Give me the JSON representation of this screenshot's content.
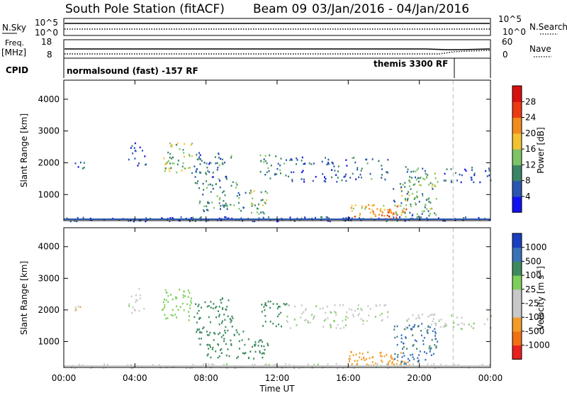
{
  "header": {
    "station": "South Pole Station (fitACF)",
    "beam": "Beam 09",
    "dates": "03/Jan/2016 - 04/Jan/2016"
  },
  "strips": {
    "nsky": {
      "label": "N.Sky",
      "tick_top": "10^5",
      "tick_bottom": "10^0"
    },
    "nsearch": {
      "label": "N.Search",
      "tick_top": "10^5",
      "tick_bottom": "10^0"
    },
    "freq": {
      "label": "Freq.",
      "unit": "[MHz]",
      "tick_top": "18",
      "tick_bottom": "8"
    },
    "nave": {
      "label": "Nave",
      "tick_top": "60",
      "tick_bottom": "0"
    }
  },
  "cpid": {
    "label": "CPID",
    "modes": [
      "normalsound (fast) -157 RF",
      "themis 3300 RF"
    ],
    "mode_change_hour": 21.9
  },
  "chart_data": [
    {
      "type": "heatmap",
      "name": "power",
      "xlabel": "Time UT",
      "ylabel": "Slant Range [km]",
      "x_range_hours": [
        0,
        24
      ],
      "ylim": [
        180,
        4600
      ],
      "yticks": [
        "1000",
        "2000",
        "3000",
        "4000"
      ],
      "ytick_values": [
        1000,
        2000,
        3000,
        4000
      ],
      "colorbar": {
        "label": "Power [dB]",
        "ticks": [
          "4",
          "8",
          "12",
          "16",
          "20",
          "24",
          "28"
        ],
        "colors": [
          "#1212f0",
          "#2a56b0",
          "#3b8566",
          "#7ec466",
          "#f2c233",
          "#f08c1e",
          "#ee3a12",
          "#d81010"
        ]
      },
      "regions": [
        {
          "x": [
            0,
            24
          ],
          "y": [
            180,
            320
          ],
          "value": 6,
          "density": 0.55
        },
        {
          "x": [
            0.5,
            1.2
          ],
          "y": [
            1850,
            2150
          ],
          "value": 6,
          "density": 0.35
        },
        {
          "x": [
            3.6,
            4.6
          ],
          "y": [
            1900,
            2700
          ],
          "value": 6,
          "density": 0.25
        },
        {
          "x": [
            5.5,
            7.2
          ],
          "y": [
            1700,
            2700
          ],
          "value": 14,
          "density": 0.35
        },
        {
          "x": [
            7.2,
            9.5
          ],
          "y": [
            1300,
            2400
          ],
          "value": 8,
          "density": 0.3
        },
        {
          "x": [
            7.5,
            10.2
          ],
          "y": [
            500,
            1400
          ],
          "value": 10,
          "density": 0.3
        },
        {
          "x": [
            10.3,
            11.5
          ],
          "y": [
            400,
            1200
          ],
          "value": 12,
          "density": 0.35
        },
        {
          "x": [
            11.0,
            12.5
          ],
          "y": [
            1500,
            2300
          ],
          "value": 10,
          "density": 0.3
        },
        {
          "x": [
            12.5,
            16.0
          ],
          "y": [
            1400,
            2200
          ],
          "value": 6,
          "density": 0.25
        },
        {
          "x": [
            16.0,
            18.2
          ],
          "y": [
            1500,
            2200
          ],
          "value": 8,
          "density": 0.25
        },
        {
          "x": [
            16.0,
            19.4
          ],
          "y": [
            250,
            700
          ],
          "value": 20,
          "density": 0.5
        },
        {
          "x": [
            17.6,
            18.8
          ],
          "y": [
            280,
            520
          ],
          "value": 26,
          "density": 0.4
        },
        {
          "x": [
            18.5,
            21.0
          ],
          "y": [
            300,
            1600
          ],
          "value": 12,
          "density": 0.35
        },
        {
          "x": [
            19.2,
            21.0
          ],
          "y": [
            1400,
            1900
          ],
          "value": 10,
          "density": 0.3
        },
        {
          "x": [
            21.0,
            24.0
          ],
          "y": [
            1400,
            1900
          ],
          "value": 6,
          "density": 0.25
        }
      ]
    },
    {
      "type": "heatmap",
      "name": "velocity",
      "xlabel": "Time UT",
      "ylabel": "Slant Range [km]",
      "x_range_hours": [
        0,
        24
      ],
      "xticks": [
        "00:00",
        "04:00",
        "08:00",
        "12:00",
        "16:00",
        "20:00",
        "00:00"
      ],
      "xtick_hours": [
        0,
        4,
        8,
        12,
        16,
        20,
        24
      ],
      "ylim": [
        180,
        4600
      ],
      "yticks": [
        "1000",
        "2000",
        "3000",
        "4000"
      ],
      "ytick_values": [
        1000,
        2000,
        3000,
        4000
      ],
      "colorbar": {
        "label_prefix": "Velocity [m s",
        "label_exponent": "-1",
        "label_suffix": "]",
        "ticks": [
          "-1000",
          "-500",
          "-100",
          "-25",
          "25",
          "100",
          "500",
          "1000"
        ],
        "colors": [
          "#e82020",
          "#f07014",
          "#f29c2a",
          "#c8c8c8",
          "#c8c8c8",
          "#7ecf5a",
          "#3e8a5e",
          "#3a72b8",
          "#1a3fc0"
        ]
      },
      "regions": [
        {
          "x": [
            0,
            24
          ],
          "y": [
            180,
            320
          ],
          "value": 0,
          "density": 0.45
        },
        {
          "x": [
            0.5,
            1.2
          ],
          "y": [
            1850,
            2150
          ],
          "value": -120,
          "density": 0.3
        },
        {
          "x": [
            3.6,
            4.6
          ],
          "y": [
            1900,
            2700
          ],
          "value": 0,
          "density": 0.25
        },
        {
          "x": [
            5.5,
            7.2
          ],
          "y": [
            1700,
            2700
          ],
          "value": 60,
          "density": 0.35
        },
        {
          "x": [
            7.2,
            9.5
          ],
          "y": [
            1300,
            2400
          ],
          "value": 200,
          "density": 0.3
        },
        {
          "x": [
            7.5,
            10.2
          ],
          "y": [
            500,
            1400
          ],
          "value": 300,
          "density": 0.3
        },
        {
          "x": [
            10.3,
            11.5
          ],
          "y": [
            400,
            1200
          ],
          "value": 300,
          "density": 0.35
        },
        {
          "x": [
            11.0,
            12.5
          ],
          "y": [
            1500,
            2300
          ],
          "value": 250,
          "density": 0.3
        },
        {
          "x": [
            12.5,
            16.0
          ],
          "y": [
            1400,
            2200
          ],
          "value": 10,
          "density": 0.25
        },
        {
          "x": [
            16.0,
            18.2
          ],
          "y": [
            1500,
            2200
          ],
          "value": 0,
          "density": 0.25
        },
        {
          "x": [
            16.0,
            19.4
          ],
          "y": [
            250,
            700
          ],
          "value": -300,
          "density": 0.5
        },
        {
          "x": [
            18.5,
            21.0
          ],
          "y": [
            300,
            1600
          ],
          "value": 600,
          "density": 0.35
        },
        {
          "x": [
            19.2,
            21.0
          ],
          "y": [
            1400,
            1900
          ],
          "value": 0,
          "density": 0.3
        },
        {
          "x": [
            21.0,
            24.0
          ],
          "y": [
            1400,
            1900
          ],
          "value": 10,
          "density": 0.25
        }
      ]
    }
  ]
}
